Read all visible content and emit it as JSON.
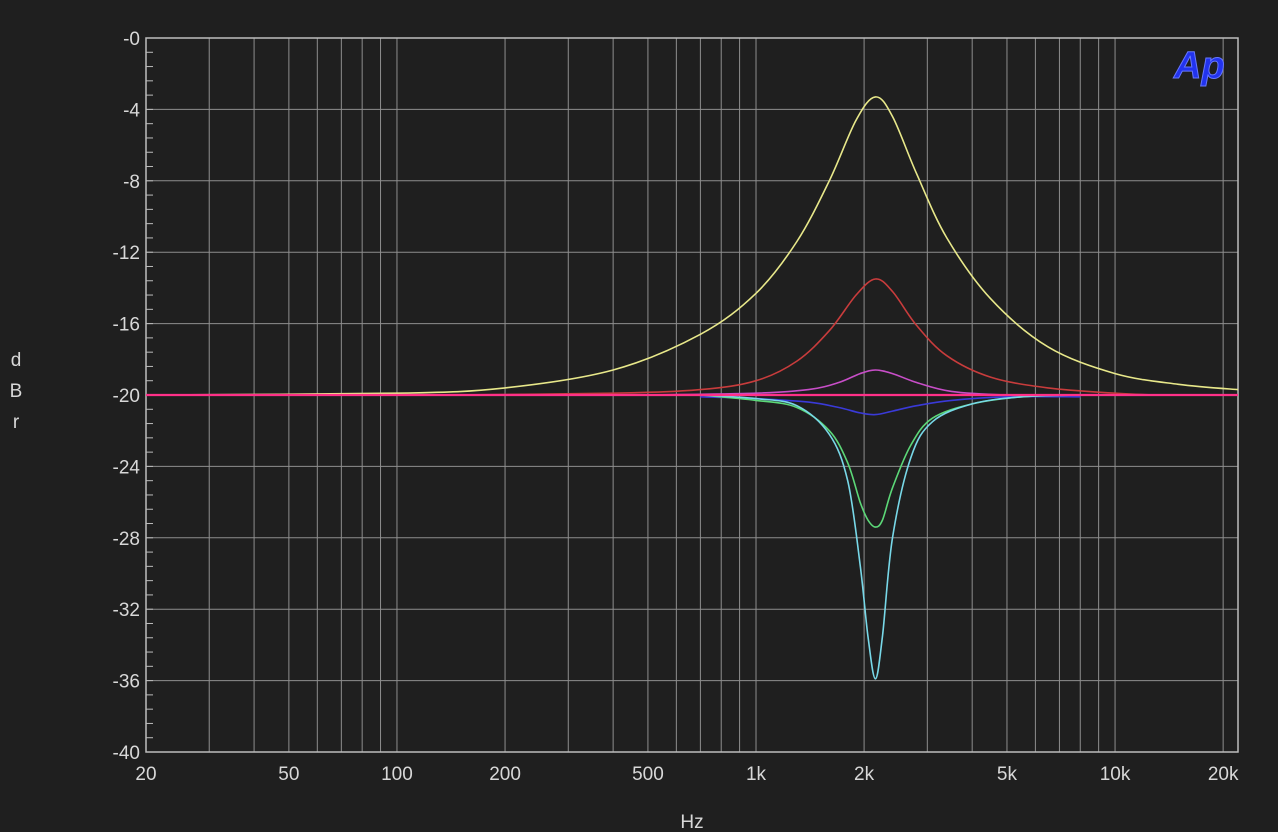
{
  "chart_data": {
    "type": "line",
    "xlabel": "Hz",
    "ylabel": "dBr",
    "x_scale": "log",
    "xlim": [
      20,
      22000
    ],
    "ylim": [
      -40,
      0
    ],
    "grid": true,
    "logo": "Ap",
    "x_ticks": [
      {
        "value": 20,
        "label": "20"
      },
      {
        "value": 50,
        "label": "50"
      },
      {
        "value": 100,
        "label": "100"
      },
      {
        "value": 200,
        "label": "200"
      },
      {
        "value": 500,
        "label": "500"
      },
      {
        "value": 1000,
        "label": "1k"
      },
      {
        "value": 2000,
        "label": "2k"
      },
      {
        "value": 5000,
        "label": "5k"
      },
      {
        "value": 10000,
        "label": "10k"
      },
      {
        "value": 20000,
        "label": "20k"
      }
    ],
    "y_ticks": [
      {
        "value": 0,
        "label": "-0"
      },
      {
        "value": -4,
        "label": "-4"
      },
      {
        "value": -8,
        "label": "-8"
      },
      {
        "value": -12,
        "label": "-12"
      },
      {
        "value": -16,
        "label": "-16"
      },
      {
        "value": -20,
        "label": "-20"
      },
      {
        "value": -24,
        "label": "-24"
      },
      {
        "value": -28,
        "label": "-28"
      },
      {
        "value": -32,
        "label": "-32"
      },
      {
        "value": -36,
        "label": "-36"
      },
      {
        "value": -40,
        "label": "-40"
      }
    ],
    "series": [
      {
        "color": "#e8e88a",
        "x": [
          20,
          100,
          200,
          400,
          700,
          1000,
          1300,
          1600,
          1900,
          2150,
          2400,
          2800,
          3400,
          4500,
          6500,
          10000,
          15000,
          22000
        ],
        "y": [
          -20,
          -19.9,
          -19.6,
          -18.6,
          -16.6,
          -14.3,
          -11.4,
          -8.0,
          -4.6,
          -3.3,
          -4.4,
          -7.6,
          -11.2,
          -14.6,
          -17.3,
          -18.8,
          -19.4,
          -19.7
        ]
      },
      {
        "color": "#c83c3c",
        "x": [
          140,
          400,
          700,
          1000,
          1300,
          1600,
          1900,
          2150,
          2400,
          2800,
          3400,
          4500,
          6500,
          10000,
          13000
        ],
        "y": [
          -20,
          -19.9,
          -19.7,
          -19.2,
          -18.1,
          -16.4,
          -14.4,
          -13.5,
          -14.2,
          -16.1,
          -17.8,
          -19.0,
          -19.6,
          -19.9,
          -20
        ]
      },
      {
        "color": "#c84ec8",
        "x": [
          500,
          1000,
          1400,
          1700,
          1950,
          2150,
          2400,
          2800,
          3500,
          5000,
          7000
        ],
        "y": [
          -20,
          -19.9,
          -19.7,
          -19.3,
          -18.8,
          -18.6,
          -18.8,
          -19.3,
          -19.8,
          -20,
          -20
        ]
      },
      {
        "color": "#3a3ad8",
        "x": [
          700,
          1000,
          1400,
          1700,
          1950,
          2150,
          2400,
          2800,
          3500,
          5000,
          8000
        ],
        "y": [
          -20.1,
          -20.2,
          -20.4,
          -20.7,
          -21.0,
          -21.1,
          -20.9,
          -20.6,
          -20.3,
          -20.1,
          -20.1
        ]
      },
      {
        "color": "#5cd878",
        "x": [
          700,
          1000,
          1300,
          1600,
          1800,
          1950,
          2050,
          2150,
          2250,
          2400,
          2700,
          3100,
          4000,
          5500,
          8000
        ],
        "y": [
          -20,
          -20.3,
          -20.7,
          -22.0,
          -23.8,
          -26.0,
          -27.0,
          -27.4,
          -27.0,
          -25.2,
          -22.8,
          -21.3,
          -20.5,
          -20.1,
          -20
        ]
      },
      {
        "color": "#78d8e8",
        "x": [
          700,
          1000,
          1300,
          1600,
          1800,
          1950,
          2050,
          2150,
          2250,
          2400,
          2700,
          3100,
          4000,
          5500,
          8000
        ],
        "y": [
          -20,
          -20.2,
          -20.6,
          -22.2,
          -24.8,
          -29.5,
          -33.5,
          -35.9,
          -33.5,
          -28.0,
          -23.5,
          -21.5,
          -20.5,
          -20.1,
          -20
        ]
      },
      {
        "color": "#ff3088",
        "x": [
          20,
          22000
        ],
        "y": [
          -20,
          -20
        ]
      }
    ]
  }
}
